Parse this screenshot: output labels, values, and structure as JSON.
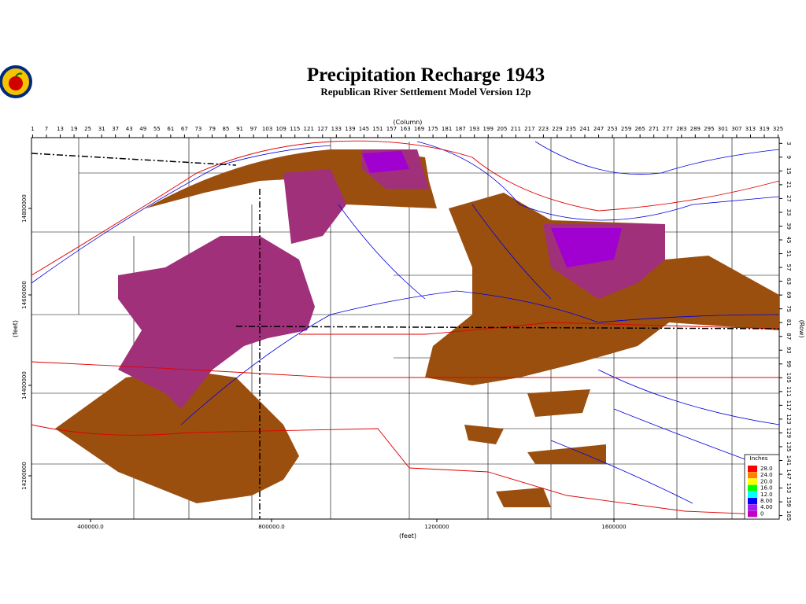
{
  "header": {
    "title": "Precipitation Recharge 1943",
    "subtitle": "Republican River Settlement Model Version 12p"
  },
  "map": {
    "column_label": "(Column)",
    "row_label": "(Row)",
    "x_label": "(feet)",
    "y_label": "(feet)",
    "columns": [
      1,
      7,
      13,
      19,
      25,
      31,
      37,
      43,
      49,
      55,
      61,
      67,
      73,
      79,
      85,
      91,
      97,
      103,
      109,
      115,
      121,
      127,
      133,
      139,
      145,
      151,
      157,
      163,
      169,
      175,
      181,
      187,
      193,
      199,
      205,
      211,
      217,
      223,
      229,
      235,
      241,
      247,
      253,
      259,
      265,
      271,
      277,
      283,
      289,
      295,
      301,
      307,
      313,
      319,
      325
    ],
    "rows": [
      3,
      9,
      15,
      21,
      27,
      33,
      39,
      45,
      51,
      57,
      63,
      69,
      75,
      81,
      87,
      93,
      99,
      105,
      111,
      117,
      123,
      129,
      135,
      141,
      147,
      153,
      159,
      165
    ],
    "x_ticks": [
      "400000.0",
      "800000.0",
      "1200000",
      "1600000"
    ],
    "y_ticks": [
      "14800000",
      "14600000",
      "14400000",
      "14200000"
    ]
  },
  "legend": {
    "title": "Inches",
    "items": [
      {
        "label": "28.0",
        "color": "#ff0000"
      },
      {
        "label": "24.0",
        "color": "#ff8000"
      },
      {
        "label": "20.0",
        "color": "#ffff00"
      },
      {
        "label": "16.0",
        "color": "#00ff00"
      },
      {
        "label": "12.0",
        "color": "#00ffff"
      },
      {
        "label": "8.00",
        "color": "#0000ff"
      },
      {
        "label": "4.00",
        "color": "#a020f0"
      },
      {
        "label": "0",
        "color": "#c000c0"
      }
    ]
  }
}
